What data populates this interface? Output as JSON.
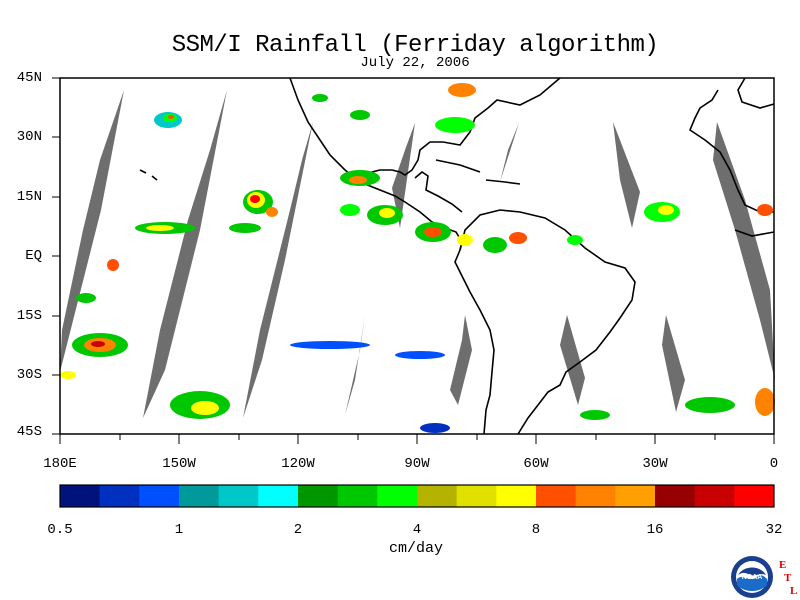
{
  "title": "SSM/I Rainfall (Ferriday algorithm)",
  "date": "July 22, 2006",
  "lat_labels": [
    "45N",
    "30N",
    "15N",
    "EQ",
    "15S",
    "30S",
    "45S"
  ],
  "lon_labels": [
    "180E",
    "150W",
    "120W",
    "90W",
    "60W",
    "30W",
    "0"
  ],
  "colorbar": {
    "colors": [
      "#00137d",
      "#0030c0",
      "#0050ff",
      "#009a9a",
      "#00c8c8",
      "#00ffff",
      "#009600",
      "#00c800",
      "#00ff00",
      "#b4b400",
      "#e1e100",
      "#ffff00",
      "#ff5000",
      "#ff8200",
      "#ffa000",
      "#960000",
      "#c80000",
      "#ff0000"
    ],
    "tick_labels": [
      "0.5",
      "1",
      "2",
      "4",
      "8",
      "16",
      "32"
    ],
    "units": "cm/day"
  },
  "logo": {
    "text": "NOAA",
    "letters": [
      "E",
      "T",
      "L"
    ]
  }
}
